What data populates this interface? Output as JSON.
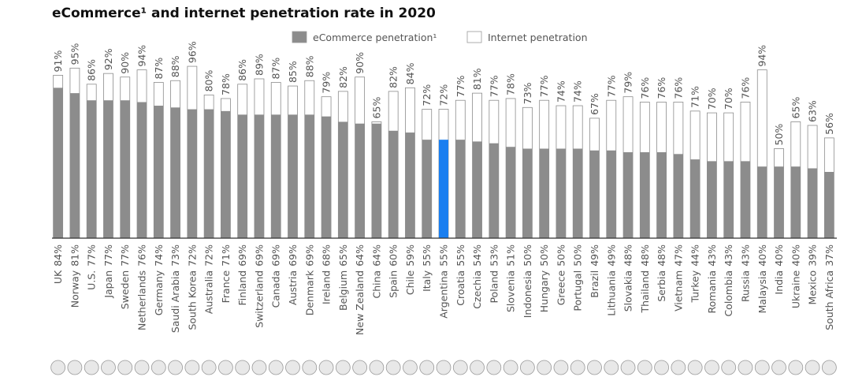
{
  "chart_data": {
    "type": "overlap-bar",
    "title": "eCommerce¹ and internet penetration rate in 2020",
    "categories": [
      "UK",
      "Norway",
      "U.S.",
      "Japan",
      "Sweden",
      "Netherlands",
      "Germany",
      "Saudi Arabia",
      "South Korea",
      "Australia",
      "France",
      "Finland",
      "Switzerland",
      "Canada",
      "Austria",
      "Denmark",
      "Ireland",
      "Belgium",
      "New Zealand",
      "China",
      "Spain",
      "Chile",
      "Italy",
      "Argentina",
      "Croatia",
      "Czechia",
      "Poland",
      "Slovenia",
      "Indonesia",
      "Hungary",
      "Greece",
      "Portugal",
      "Brazil",
      "Lithuania",
      "Slovakia",
      "Thailand",
      "Serbia",
      "Vietnam",
      "Turkey",
      "Romania",
      "Colombia",
      "Russia",
      "Malaysia",
      "India",
      "Ukraine",
      "Mexico",
      "South Africa"
    ],
    "series": [
      {
        "name": "eCommerce penetration¹",
        "color": "#8c8c8c",
        "highlight": "Argentina",
        "highlight_color": "#1a7ff0",
        "values": [
          84,
          81,
          77,
          77,
          77,
          76,
          74,
          73,
          72,
          72,
          71,
          69,
          69,
          69,
          69,
          69,
          68,
          65,
          64,
          64,
          60,
          59,
          55,
          55,
          55,
          54,
          53,
          51,
          50,
          50,
          50,
          50,
          49,
          49,
          48,
          48,
          48,
          47,
          44,
          43,
          43,
          43,
          40,
          40,
          40,
          39,
          37
        ],
        "value_labels": [
          "84%",
          "81%",
          "77%",
          "77%",
          "77%",
          "76%",
          "74%",
          "73%",
          "72%",
          "72%",
          "71%",
          "69%",
          "69%",
          "69%",
          "69%",
          "69%",
          "68%",
          "65%",
          "64%",
          "64%",
          "60%",
          "59%",
          "55%",
          "55%",
          "55%",
          "54%",
          "53%",
          "51%",
          "50%",
          "50%",
          "50%",
          "50%",
          "49%",
          "49%",
          "48%",
          "48%",
          "48%",
          "47%",
          "44%",
          "43%",
          "43%",
          "43%",
          "40%",
          "40%",
          "40%",
          "39%",
          "37%"
        ]
      },
      {
        "name": "Internet penetration",
        "color": "#ffffff",
        "values": [
          91,
          95,
          86,
          92,
          90,
          94,
          87,
          88,
          96,
          80,
          78,
          86,
          89,
          87,
          85,
          88,
          79,
          82,
          90,
          65,
          82,
          84,
          72,
          72,
          77,
          81,
          77,
          78,
          73,
          77,
          74,
          74,
          67,
          77,
          79,
          76,
          76,
          76,
          71,
          70,
          70,
          76,
          94,
          50,
          65,
          63,
          56
        ],
        "value_labels": [
          "91%",
          "95%",
          "86%",
          "92%",
          "90%",
          "94%",
          "87%",
          "88%",
          "96%",
          "80%",
          "78%",
          "86%",
          "89%",
          "87%",
          "85%",
          "88%",
          "79%",
          "82%",
          "90%",
          "65%",
          "82%",
          "84%",
          "72%",
          "72%",
          "77%",
          "81%",
          "77%",
          "78%",
          "73%",
          "77%",
          "74%",
          "74%",
          "67%",
          "77%",
          "79%",
          "76%",
          "76%",
          "76%",
          "71%",
          "70%",
          "70%",
          "76%",
          "94%",
          "50%",
          "65%",
          "63%",
          "56%"
        ]
      }
    ],
    "ylim": [
      0,
      100
    ]
  }
}
